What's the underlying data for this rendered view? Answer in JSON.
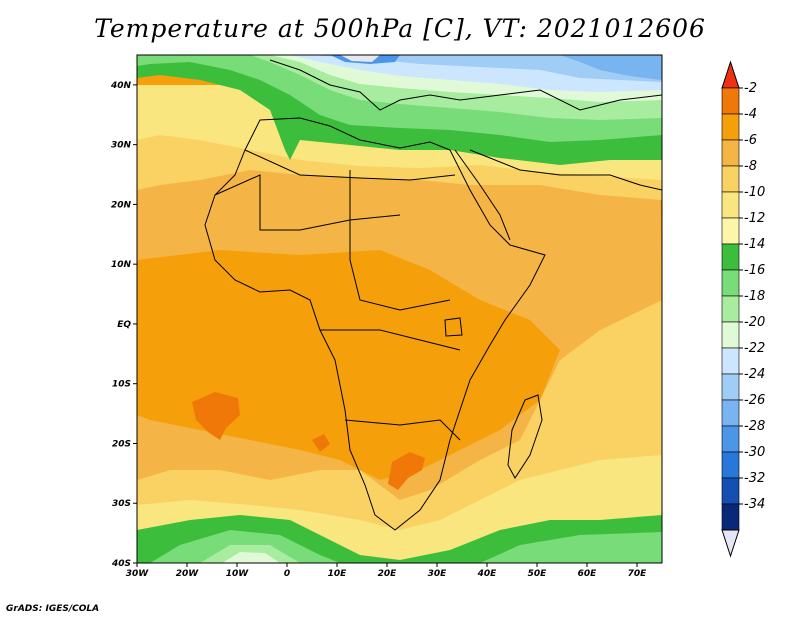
{
  "title": "Temperature at 500hPa [C], VT: 2021012606",
  "credit": "GrADS: IGES/COLA",
  "map": {
    "lon_range": [
      -30,
      75
    ],
    "lat_range": [
      -40,
      45
    ],
    "lon_ticks": [
      {
        "value": -30,
        "label": "30W"
      },
      {
        "value": -20,
        "label": "20W"
      },
      {
        "value": -10,
        "label": "10W"
      },
      {
        "value": 0,
        "label": "0"
      },
      {
        "value": 10,
        "label": "10E"
      },
      {
        "value": 20,
        "label": "20E"
      },
      {
        "value": 30,
        "label": "30E"
      },
      {
        "value": 40,
        "label": "40E"
      },
      {
        "value": 50,
        "label": "50E"
      },
      {
        "value": 60,
        "label": "60E"
      },
      {
        "value": 70,
        "label": "70E"
      }
    ],
    "lat_ticks": [
      {
        "value": 40,
        "label": "40N"
      },
      {
        "value": 30,
        "label": "30N"
      },
      {
        "value": 20,
        "label": "20N"
      },
      {
        "value": 10,
        "label": "10N"
      },
      {
        "value": 0,
        "label": "EQ"
      },
      {
        "value": -10,
        "label": "10S"
      },
      {
        "value": -20,
        "label": "20S"
      },
      {
        "value": -30,
        "label": "30S"
      },
      {
        "value": -40,
        "label": "40S"
      }
    ]
  },
  "colorbar": {
    "labels": [
      "-2",
      "-4",
      "-6",
      "-8",
      "-10",
      "-12",
      "-14",
      "-16",
      "-18",
      "-20",
      "-22",
      "-24",
      "-26",
      "-28",
      "-30",
      "-32",
      "-34"
    ],
    "colors": [
      "#f03010",
      "#f07808",
      "#f5a00a",
      "#f5b446",
      "#fad264",
      "#fae67e",
      "#fcf7a8",
      "#3cbe3c",
      "#78dc78",
      "#a8eca0",
      "#e0fad8",
      "#cde6ff",
      "#a0cdf5",
      "#78b4f0",
      "#4b96e6",
      "#2878dc",
      "#1450b4",
      "#0a2878",
      "#e6e6f5"
    ]
  }
}
